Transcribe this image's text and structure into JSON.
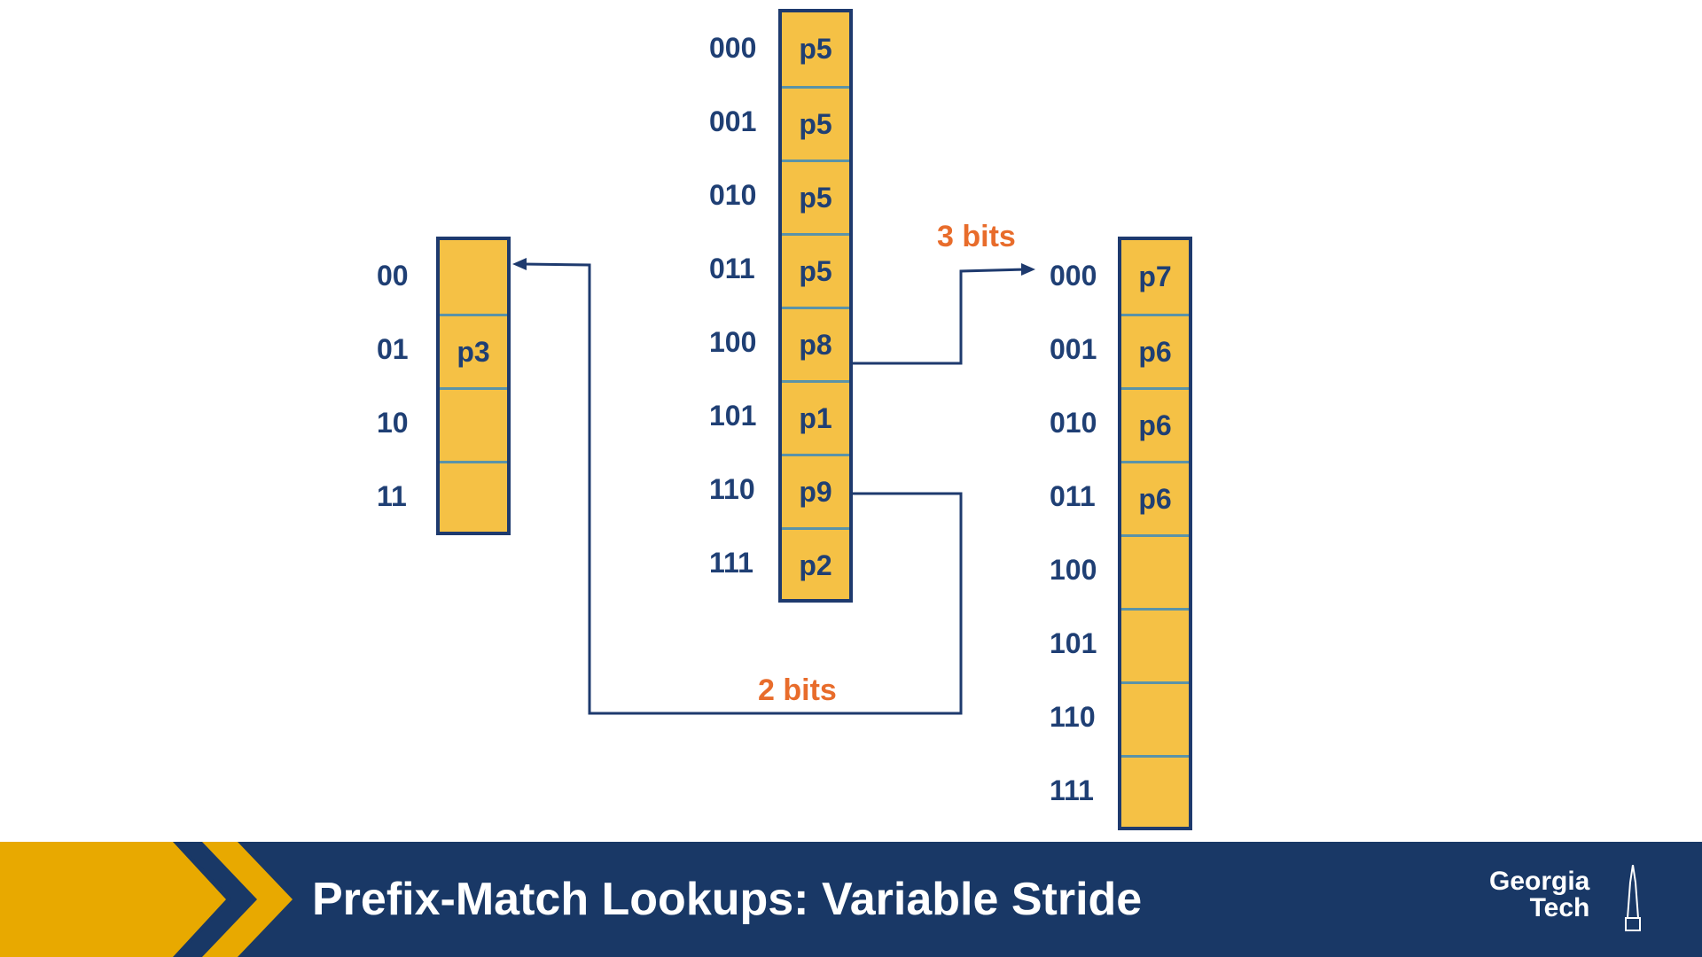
{
  "diagram": {
    "left_table": {
      "indices": [
        "00",
        "01",
        "10",
        "11"
      ],
      "entries": [
        "",
        "p3",
        "",
        ""
      ]
    },
    "center_table": {
      "indices": [
        "000",
        "001",
        "010",
        "011",
        "100",
        "101",
        "110",
        "111"
      ],
      "entries": [
        "p5",
        "p5",
        "p5",
        "p5",
        "p8",
        "p1",
        "p9",
        "p2"
      ]
    },
    "right_table": {
      "indices": [
        "000",
        "001",
        "010",
        "011",
        "100",
        "101",
        "110",
        "111"
      ],
      "entries": [
        "p7",
        "p6",
        "p6",
        "p6",
        "",
        "",
        "",
        ""
      ]
    },
    "edge_labels": {
      "to_right": "3 bits",
      "to_left": "2 bits"
    },
    "colors": {
      "table_fill": "#f5c145",
      "table_border": "#1e3a6e",
      "text": "#1f3f74",
      "accent": "#e86c2b",
      "connector": "#1e3a6e"
    }
  },
  "footer": {
    "title": "Prefix-Match Lookups: Variable Stride",
    "brand_line1": "Georgia",
    "brand_line2": "Tech",
    "colors": {
      "bar": "#193866",
      "chevron": "#e8a900"
    }
  }
}
